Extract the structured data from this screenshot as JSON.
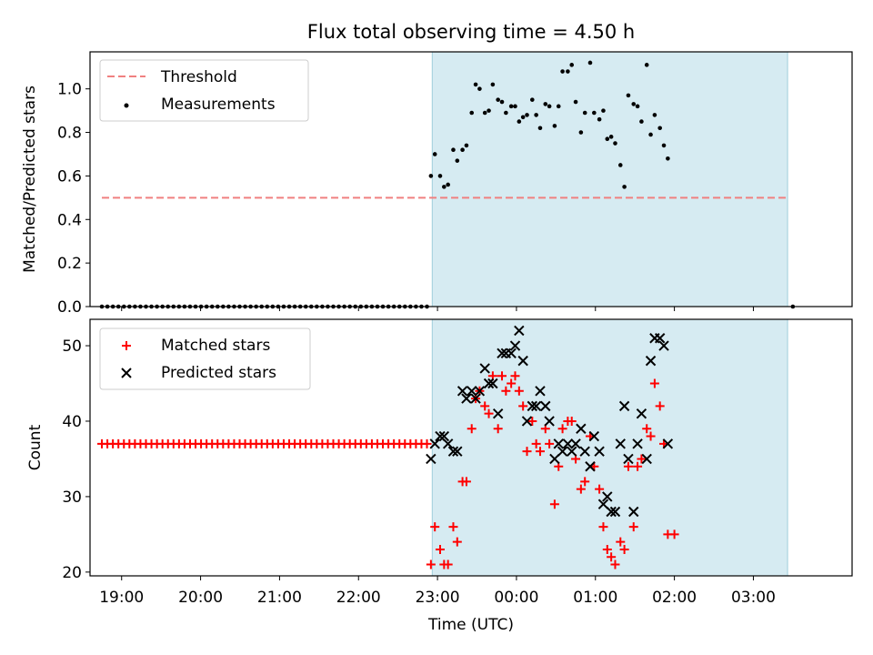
{
  "title": "Flux total observing time = 4.50 h",
  "chart_data": [
    {
      "type": "scatter",
      "ylabel": "Matched/Predicted stars",
      "xlim": [
        "18:36",
        "04:15"
      ],
      "ylim": [
        0,
        1.17
      ],
      "yticks": [
        "0.0",
        "0.2",
        "0.4",
        "0.6",
        "0.8",
        "1.0"
      ],
      "shaded_interval": [
        "22:56",
        "03:26"
      ],
      "legend_position": "upper left",
      "threshold": {
        "name": "Threshold",
        "value": 0.5,
        "x_range": [
          "18:45",
          "03:25"
        ],
        "color": "#f08080"
      },
      "measurements": {
        "name": "Measurements",
        "color": "#000000",
        "zero_x": [
          "18:45",
          "22:52"
        ],
        "zero_count": 60,
        "post_zero_x": "03:30",
        "points": [
          [
            "22:55",
            0.6
          ],
          [
            "22:58",
            0.7
          ],
          [
            "23:02",
            0.6
          ],
          [
            "23:05",
            0.55
          ],
          [
            "23:08",
            0.56
          ],
          [
            "23:12",
            0.72
          ],
          [
            "23:15",
            0.67
          ],
          [
            "23:19",
            0.72
          ],
          [
            "23:22",
            0.74
          ],
          [
            "23:26",
            0.89
          ],
          [
            "23:29",
            1.02
          ],
          [
            "23:32",
            1.0
          ],
          [
            "23:36",
            0.89
          ],
          [
            "23:39",
            0.9
          ],
          [
            "23:42",
            1.02
          ],
          [
            "23:46",
            0.95
          ],
          [
            "23:49",
            0.94
          ],
          [
            "23:52",
            0.89
          ],
          [
            "23:56",
            0.92
          ],
          [
            "23:59",
            0.92
          ],
          [
            "00:02",
            0.85
          ],
          [
            "00:05",
            0.87
          ],
          [
            "00:08",
            0.88
          ],
          [
            "00:12",
            0.95
          ],
          [
            "00:15",
            0.88
          ],
          [
            "00:18",
            0.82
          ],
          [
            "00:22",
            0.93
          ],
          [
            "00:25",
            0.92
          ],
          [
            "00:29",
            0.83
          ],
          [
            "00:32",
            0.92
          ],
          [
            "00:35",
            1.08
          ],
          [
            "00:39",
            1.08
          ],
          [
            "00:42",
            1.11
          ],
          [
            "00:45",
            0.94
          ],
          [
            "00:49",
            0.8
          ],
          [
            "00:52",
            0.89
          ],
          [
            "00:56",
            1.12
          ],
          [
            "00:59",
            0.89
          ],
          [
            "01:03",
            0.86
          ],
          [
            "01:06",
            0.9
          ],
          [
            "01:09",
            0.77
          ],
          [
            "01:12",
            0.78
          ],
          [
            "01:15",
            0.75
          ],
          [
            "01:19",
            0.65
          ],
          [
            "01:22",
            0.55
          ],
          [
            "01:25",
            0.97
          ],
          [
            "01:29",
            0.93
          ],
          [
            "01:32",
            0.92
          ],
          [
            "01:35",
            0.85
          ],
          [
            "01:39",
            1.11
          ],
          [
            "01:42",
            0.79
          ],
          [
            "01:45",
            0.88
          ],
          [
            "01:49",
            0.82
          ],
          [
            "01:52",
            0.74
          ],
          [
            "01:55",
            0.68
          ]
        ]
      }
    },
    {
      "type": "scatter",
      "xlabel": "Time (UTC)",
      "ylabel": "Count",
      "xlim": [
        "18:36",
        "04:15"
      ],
      "ylim": [
        19.5,
        53.5
      ],
      "yticks": [
        "20",
        "30",
        "40",
        "50"
      ],
      "xticks": [
        "19:00",
        "20:00",
        "21:00",
        "22:00",
        "23:00",
        "00:00",
        "01:00",
        "02:00",
        "03:00"
      ],
      "shaded_interval": [
        "22:56",
        "03:26"
      ],
      "legend_position": "upper left",
      "series": [
        {
          "name": "Matched stars",
          "marker": "plus",
          "color": "#ff0000",
          "flat_segment": {
            "x_range": [
              "18:45",
              "22:52"
            ],
            "count": 60,
            "value": 37
          },
          "points": [
            [
              "22:55",
              21
            ],
            [
              "22:58",
              26
            ],
            [
              "23:02",
              23
            ],
            [
              "23:05",
              21
            ],
            [
              "23:08",
              21
            ],
            [
              "23:12",
              26
            ],
            [
              "23:15",
              24
            ],
            [
              "23:19",
              32
            ],
            [
              "23:22",
              32
            ],
            [
              "23:26",
              39
            ],
            [
              "23:29",
              43
            ],
            [
              "23:32",
              44
            ],
            [
              "23:36",
              42
            ],
            [
              "23:39",
              41
            ],
            [
              "23:42",
              46
            ],
            [
              "23:46",
              39
            ],
            [
              "23:49",
              46
            ],
            [
              "23:52",
              44
            ],
            [
              "23:56",
              45
            ],
            [
              "23:59",
              46
            ],
            [
              "00:02",
              44
            ],
            [
              "00:05",
              42
            ],
            [
              "00:08",
              36
            ],
            [
              "00:12",
              40
            ],
            [
              "00:15",
              37
            ],
            [
              "00:18",
              36
            ],
            [
              "00:22",
              39
            ],
            [
              "00:25",
              37
            ],
            [
              "00:29",
              29
            ],
            [
              "00:32",
              34
            ],
            [
              "00:35",
              39
            ],
            [
              "00:39",
              40
            ],
            [
              "00:42",
              40
            ],
            [
              "00:45",
              35
            ],
            [
              "00:49",
              31
            ],
            [
              "00:52",
              32
            ],
            [
              "00:56",
              38
            ],
            [
              "00:59",
              34
            ],
            [
              "01:03",
              31
            ],
            [
              "01:06",
              26
            ],
            [
              "01:09",
              23
            ],
            [
              "01:12",
              22
            ],
            [
              "01:15",
              21
            ],
            [
              "01:19",
              24
            ],
            [
              "01:22",
              23
            ],
            [
              "01:25",
              34
            ],
            [
              "01:29",
              26
            ],
            [
              "01:32",
              34
            ],
            [
              "01:35",
              35
            ],
            [
              "01:39",
              39
            ],
            [
              "01:42",
              38
            ],
            [
              "01:45",
              45
            ],
            [
              "01:49",
              42
            ],
            [
              "01:52",
              37
            ],
            [
              "01:55",
              25
            ],
            [
              "02:00",
              25
            ]
          ]
        },
        {
          "name": "Predicted stars",
          "marker": "x",
          "color": "#000000",
          "points": [
            [
              "22:55",
              35
            ],
            [
              "22:58",
              37
            ],
            [
              "23:02",
              38
            ],
            [
              "23:05",
              38
            ],
            [
              "23:08",
              37
            ],
            [
              "23:12",
              36
            ],
            [
              "23:15",
              36
            ],
            [
              "23:19",
              44
            ],
            [
              "23:22",
              43
            ],
            [
              "23:26",
              44
            ],
            [
              "23:29",
              43
            ],
            [
              "23:32",
              44
            ],
            [
              "23:36",
              47
            ],
            [
              "23:39",
              45
            ],
            [
              "23:42",
              45
            ],
            [
              "23:46",
              41
            ],
            [
              "23:49",
              49
            ],
            [
              "23:52",
              49
            ],
            [
              "23:56",
              49
            ],
            [
              "23:59",
              50
            ],
            [
              "00:02",
              52
            ],
            [
              "00:05",
              48
            ],
            [
              "00:08",
              40
            ],
            [
              "00:12",
              42
            ],
            [
              "00:15",
              42
            ],
            [
              "00:18",
              44
            ],
            [
              "00:22",
              42
            ],
            [
              "00:25",
              40
            ],
            [
              "00:29",
              35
            ],
            [
              "00:32",
              37
            ],
            [
              "00:35",
              36
            ],
            [
              "00:39",
              37
            ],
            [
              "00:42",
              36
            ],
            [
              "00:45",
              37
            ],
            [
              "00:49",
              39
            ],
            [
              "00:52",
              36
            ],
            [
              "00:56",
              34
            ],
            [
              "00:59",
              38
            ],
            [
              "01:03",
              36
            ],
            [
              "01:06",
              29
            ],
            [
              "01:09",
              30
            ],
            [
              "01:12",
              28
            ],
            [
              "01:15",
              28
            ],
            [
              "01:19",
              37
            ],
            [
              "01:22",
              42
            ],
            [
              "01:25",
              35
            ],
            [
              "01:29",
              28
            ],
            [
              "01:32",
              37
            ],
            [
              "01:35",
              41
            ],
            [
              "01:39",
              35
            ],
            [
              "01:42",
              48
            ],
            [
              "01:45",
              51
            ],
            [
              "01:49",
              51
            ],
            [
              "01:52",
              50
            ],
            [
              "01:55",
              37
            ]
          ]
        }
      ]
    }
  ]
}
